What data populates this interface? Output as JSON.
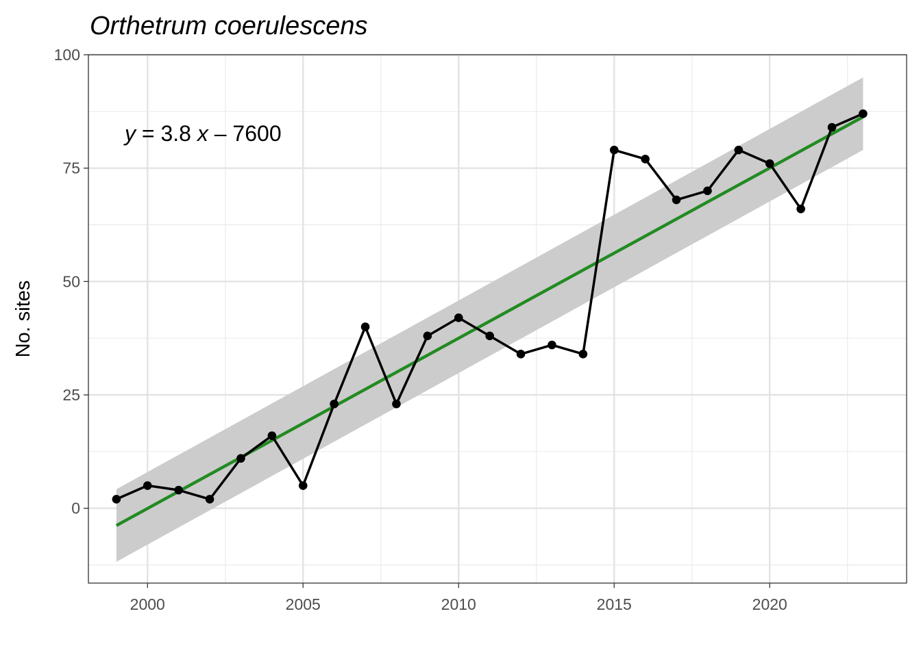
{
  "chart_data": {
    "type": "line",
    "title": "Orthetrum coerulescens",
    "xlabel": "",
    "ylabel": "No. sites",
    "xlim": [
      1998.1,
      2024.4
    ],
    "ylim": [
      -16.5,
      100
    ],
    "x_ticks": [
      2000,
      2005,
      2010,
      2015,
      2020
    ],
    "y_ticks": [
      0,
      25,
      50,
      75,
      100
    ],
    "grid": true,
    "legend": "none",
    "series": [
      {
        "x": [
          1999,
          2000,
          2001,
          2002,
          2003,
          2004,
          2005,
          2006,
          2007,
          2008,
          2009,
          2010,
          2011,
          2012,
          2013,
          2014,
          2015,
          2016,
          2017,
          2018,
          2019,
          2020,
          2021,
          2022,
          2023
        ],
        "values": [
          2,
          5,
          4,
          2,
          11,
          16,
          5,
          23,
          40,
          23,
          38,
          42,
          38,
          34,
          36,
          34,
          79,
          77,
          68,
          70,
          79,
          76,
          66,
          84,
          87
        ],
        "color": "#000000"
      }
    ],
    "trend": {
      "x": [
        1999,
        2023
      ],
      "values": [
        -3.8,
        86.3
      ],
      "ci_lower": [
        -11.8,
        79.0
      ],
      "ci_upper": [
        4.2,
        95.0
      ],
      "color": "#228B22",
      "band_color": "#cccccc"
    },
    "annotation": {
      "y_var": "y",
      "eq_mid": " = 3.8 ",
      "x_var": "x",
      "eq_end": " – 7600"
    }
  }
}
